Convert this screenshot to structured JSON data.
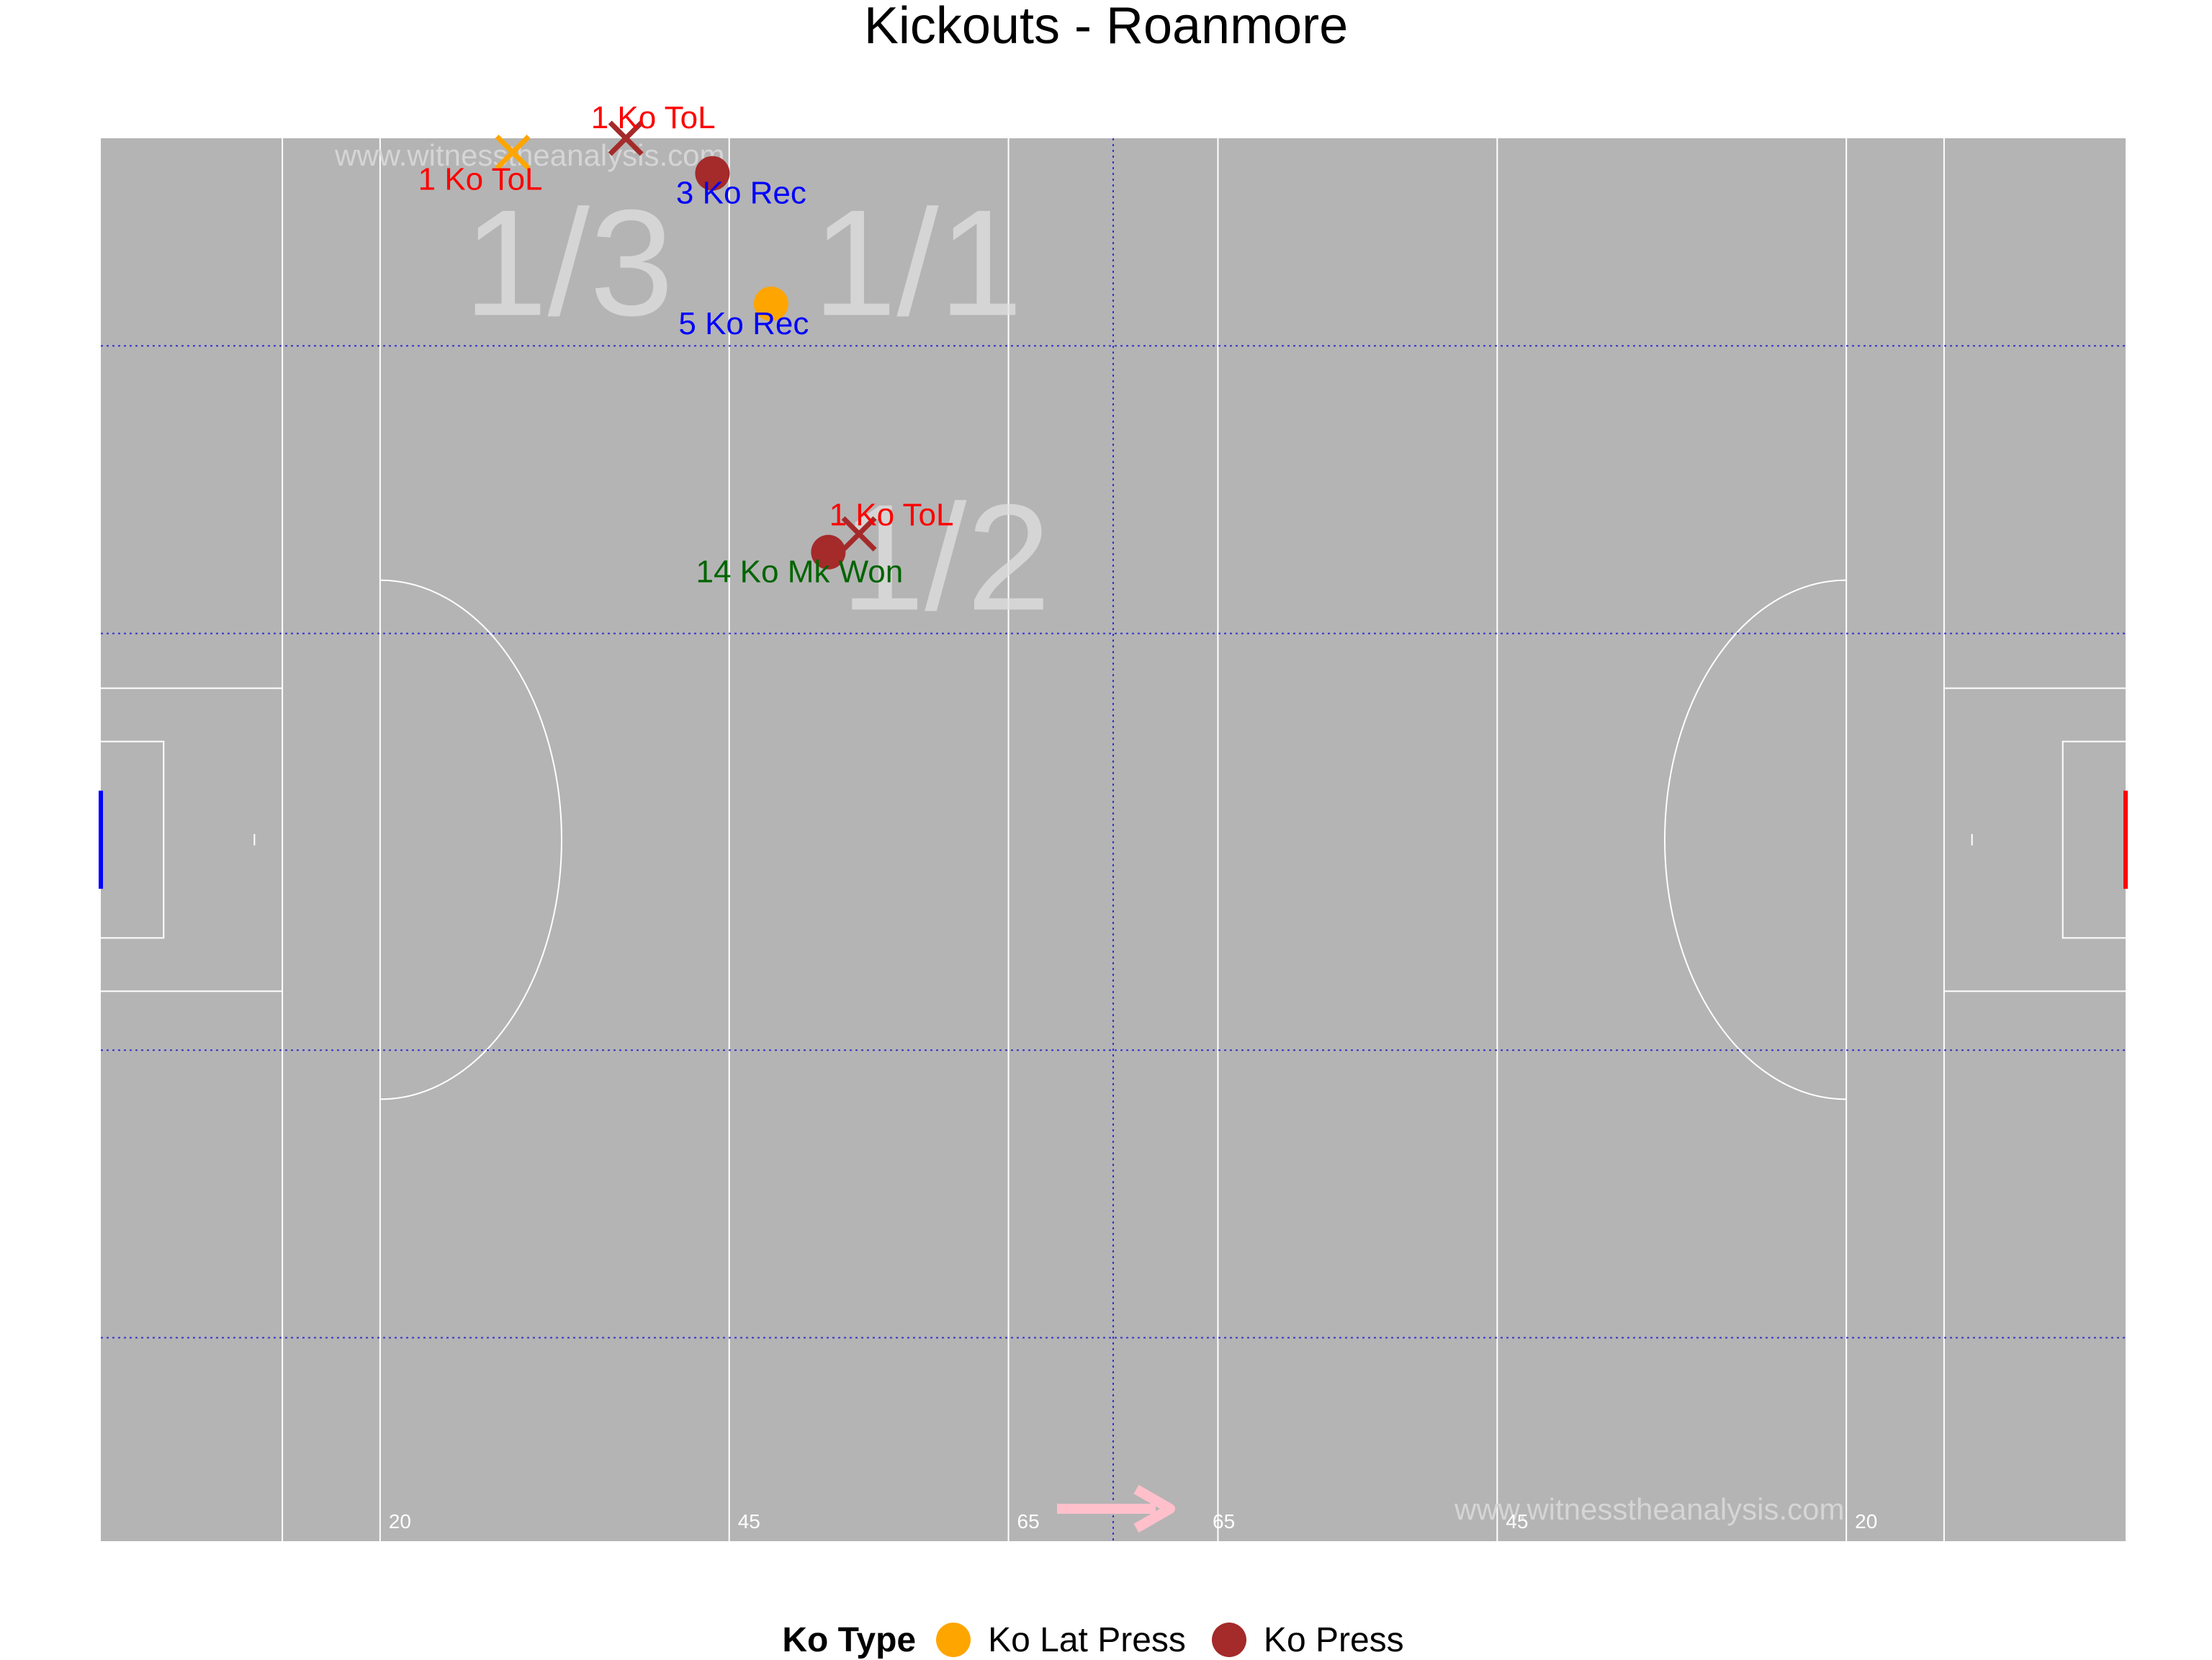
{
  "chart_data": {
    "type": "scatter",
    "title": "Kickouts - Roanmore",
    "watermark": "www.witnesstheanalysis.com",
    "x_range": [
      0,
      145
    ],
    "y_range": [
      0,
      100
    ],
    "colors": {
      "pitch": "#b4b4b4",
      "lines": "#ffffff",
      "zone_lines": "#3333cc",
      "zone_labels": "#e0e0e0",
      "attack_arrow": "#ffc0cb",
      "goal_left": "#0000ff",
      "goal_right": "#ff0000"
    },
    "distance_markers": [
      {
        "label": "20",
        "x": 20
      },
      {
        "label": "45",
        "x": 45
      },
      {
        "label": "65",
        "x": 65
      },
      {
        "label": "65",
        "x": 79
      },
      {
        "label": "45",
        "x": 100
      },
      {
        "label": "20",
        "x": 125
      }
    ],
    "zone_labels": [
      {
        "label": "1/3",
        "x": 33.5,
        "y": 91
      },
      {
        "label": "1/1",
        "x": 58.5,
        "y": 91
      },
      {
        "label": "1/2",
        "x": 60.5,
        "y": 70
      }
    ],
    "legend": {
      "title": "Ko Type",
      "position": "bottom",
      "items": [
        {
          "name": "Ko Lat Press",
          "color": "#ffa500"
        },
        {
          "name": "Ko Press",
          "color": "#a52a2a"
        }
      ]
    },
    "points": [
      {
        "ko_type": "Ko Press",
        "x": 43.8,
        "y": 97.5,
        "outcome": "3 Ko Rec",
        "label_color": "#0000ff",
        "marker": "circle"
      },
      {
        "ko_type": "Ko Lat Press",
        "x": 48.0,
        "y": 88.2,
        "outcome": "5 Ko Rec",
        "label_color": "#0000ff",
        "marker": "circle"
      },
      {
        "ko_type": "Ko Press",
        "x": 52.1,
        "y": 70.5,
        "outcome": "14 Ko Mk Won",
        "label_color": "#006400",
        "marker": "circle"
      },
      {
        "ko_type": "Ko Press",
        "x": 37.6,
        "y": 100.0,
        "outcome": "1 Ko ToL",
        "label_color": "#ff0000",
        "marker": "cross"
      },
      {
        "ko_type": "Ko Lat Press",
        "x": 29.5,
        "y": 99.0,
        "outcome": "1 Ko ToL",
        "label_color": "#ff0000",
        "marker": "cross"
      },
      {
        "ko_type": "Ko Press",
        "x": 54.3,
        "y": 71.8,
        "outcome": "1 Ko ToL",
        "label_color": "#ff0000",
        "marker": "cross"
      }
    ]
  }
}
